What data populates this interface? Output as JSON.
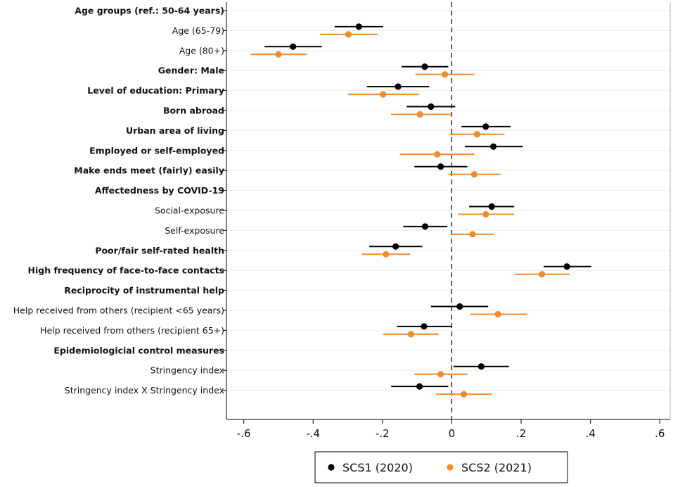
{
  "chart_data": {
    "type": "scatter",
    "subtype": "coefficient-plot",
    "xlim": [
      -0.65,
      0.63
    ],
    "xticks": [
      -0.6,
      -0.4,
      -0.2,
      0,
      0.2,
      0.4,
      0.6
    ],
    "xtick_labels": [
      "-.6",
      "-.4",
      "-.2",
      "0",
      ".2",
      ".4",
      ".6"
    ],
    "reference_line": 0,
    "series": [
      {
        "name": "SCS1 (2020)",
        "color": "#000000"
      },
      {
        "name": "SCS2 (2021)",
        "color": "#f28c28"
      }
    ],
    "rows": [
      {
        "label": "Age groups (ref.: 50-64 years)",
        "bold": true,
        "header": true
      },
      {
        "label": "Age (65-79)",
        "bold": false,
        "s1": {
          "est": -0.268,
          "lo": -0.338,
          "hi": -0.198
        },
        "s2": {
          "est": -0.298,
          "lo": -0.38,
          "hi": -0.213
        }
      },
      {
        "label": "Age (80+)",
        "bold": false,
        "s1": {
          "est": -0.458,
          "lo": -0.54,
          "hi": -0.375
        },
        "s2": {
          "est": -0.5,
          "lo": -0.58,
          "hi": -0.418
        }
      },
      {
        "label": "Gender: Male",
        "bold": true,
        "s1": {
          "est": -0.078,
          "lo": -0.145,
          "hi": -0.01
        },
        "s2": {
          "est": -0.02,
          "lo": -0.105,
          "hi": 0.065
        }
      },
      {
        "label": "Level of education: Primary",
        "bold": true,
        "s1": {
          "est": -0.155,
          "lo": -0.245,
          "hi": -0.065
        },
        "s2": {
          "est": -0.198,
          "lo": -0.3,
          "hi": -0.095
        }
      },
      {
        "label": "Born abroad",
        "bold": true,
        "s1": {
          "est": -0.06,
          "lo": -0.13,
          "hi": 0.01
        },
        "s2": {
          "est": -0.092,
          "lo": -0.175,
          "hi": -0.003
        }
      },
      {
        "label": "Urban area of living",
        "bold": true,
        "s1": {
          "est": 0.098,
          "lo": 0.028,
          "hi": 0.17
        },
        "s2": {
          "est": 0.073,
          "lo": -0.005,
          "hi": 0.152
        }
      },
      {
        "label": "Employed or self-employed",
        "bold": true,
        "s1": {
          "est": 0.12,
          "lo": 0.038,
          "hi": 0.205
        },
        "s2": {
          "est": -0.042,
          "lo": -0.15,
          "hi": 0.066
        }
      },
      {
        "label": "Make ends meet (fairly) easily",
        "bold": true,
        "s1": {
          "est": -0.032,
          "lo": -0.108,
          "hi": 0.045
        },
        "s2": {
          "est": 0.065,
          "lo": -0.01,
          "hi": 0.142
        }
      },
      {
        "label": "Affectedness by COVID-19",
        "bold": true,
        "header": true
      },
      {
        "label": "Social-exposure",
        "bold": false,
        "s1": {
          "est": 0.115,
          "lo": 0.05,
          "hi": 0.18
        },
        "s2": {
          "est": 0.098,
          "lo": 0.018,
          "hi": 0.18
        }
      },
      {
        "label": "Self-exposure",
        "bold": false,
        "s1": {
          "est": -0.077,
          "lo": -0.14,
          "hi": -0.013
        },
        "s2": {
          "est": 0.06,
          "lo": 0.0,
          "hi": 0.122
        }
      },
      {
        "label": "Poor/fair self-rated health",
        "bold": true,
        "s1": {
          "est": -0.162,
          "lo": -0.238,
          "hi": -0.085
        },
        "s2": {
          "est": -0.19,
          "lo": -0.26,
          "hi": -0.12
        }
      },
      {
        "label": "High frequency of face-to-face contacts",
        "bold": true,
        "s1": {
          "est": 0.332,
          "lo": 0.265,
          "hi": 0.402
        },
        "s2": {
          "est": 0.26,
          "lo": 0.182,
          "hi": 0.34
        }
      },
      {
        "label": "Reciprocity of instrumental help",
        "bold": true,
        "header": true
      },
      {
        "label": "Help received from others (recipient <65 years)",
        "bold": false,
        "s1": {
          "est": 0.023,
          "lo": -0.06,
          "hi": 0.105
        },
        "s2": {
          "est": 0.133,
          "lo": 0.052,
          "hi": 0.218
        }
      },
      {
        "label": "Help received from others (recipient 65+)",
        "bold": false,
        "s1": {
          "est": -0.08,
          "lo": -0.158,
          "hi": 0.0
        },
        "s2": {
          "est": -0.118,
          "lo": -0.198,
          "hi": -0.038
        }
      },
      {
        "label": "Epidemiologicial control measures",
        "bold": true,
        "header": true
      },
      {
        "label": "Stringency index",
        "bold": false,
        "s1": {
          "est": 0.085,
          "lo": 0.005,
          "hi": 0.165
        },
        "s2": {
          "est": -0.032,
          "lo": -0.108,
          "hi": 0.045
        }
      },
      {
        "label": "Stringency index X Stringency index",
        "bold": false,
        "s1": {
          "est": -0.093,
          "lo": -0.175,
          "hi": -0.01
        },
        "s2": {
          "est": 0.035,
          "lo": -0.045,
          "hi": 0.115
        }
      }
    ]
  }
}
